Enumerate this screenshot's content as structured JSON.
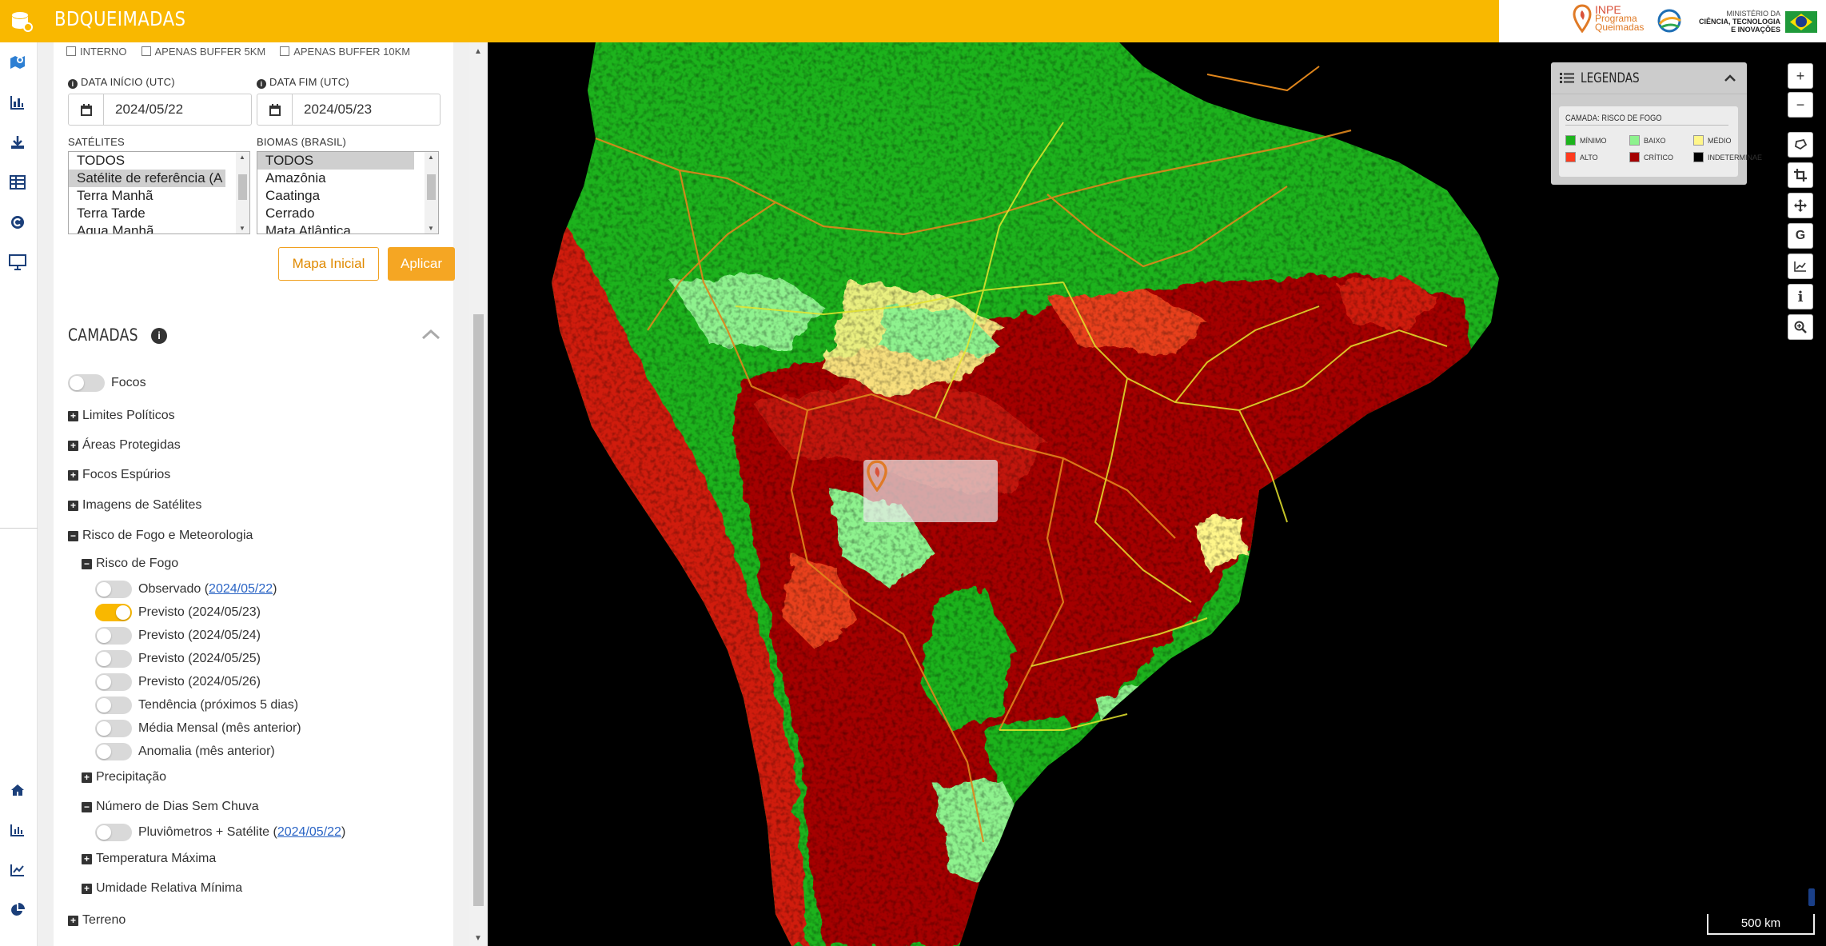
{
  "app": {
    "title": "BDQUEIMADAS",
    "brand_inpe_line1": "INPE",
    "brand_inpe_line2": "Programa",
    "brand_inpe_line3": "Queimadas",
    "brand_mcti_line1": "MINISTÉRIO DA",
    "brand_mcti_line2": "CIÊNCIA, TECNOLOGIA",
    "brand_mcti_line3": "E INOVAÇÕES",
    "accent_color": "#f9b800"
  },
  "rail": {
    "icons": [
      "map-pin-icon",
      "bar-chart-icon",
      "download-icon",
      "table-icon",
      "copyright-icon",
      "monitor-icon",
      "home-icon",
      "chart-icon",
      "line-chart-icon",
      "pie-chart-icon"
    ]
  },
  "filters": {
    "checkbox_labels": [
      "INTERNO",
      "APENAS BUFFER 5KM",
      "APENAS BUFFER 10KM"
    ],
    "date_start_label": "DATA INÍCIO (UTC)",
    "date_start_value": "2024/05/22",
    "date_end_label": "DATA FIM (UTC)",
    "date_end_value": "2024/05/23",
    "satellites_label": "SATÉLITES",
    "satellites_options": [
      "TODOS",
      "Satélite de referência (A",
      "Terra Manhã",
      "Terra Tarde",
      "Aqua Manhã"
    ],
    "satellites_selected": "Satélite de referência (A",
    "biomes_label": "BIOMAS (BRASIL)",
    "biomes_options": [
      "TODOS",
      "Amazônia",
      "Caatinga",
      "Cerrado",
      "Mata Atlântica"
    ],
    "biomes_selected": "TODOS",
    "btn_reset": "Mapa Inicial",
    "btn_apply": "Aplicar"
  },
  "layers": {
    "title": "CAMADAS",
    "focos": "Focos",
    "limites": "Limites Políticos",
    "areas": "Áreas Protegidas",
    "espurios": "Focos Espúrios",
    "imagens": "Imagens de Satélites",
    "risco_meteo": "Risco de Fogo e Meteorologia",
    "risco_fogo": "Risco de Fogo",
    "observado_prefix": "Observado (",
    "observado_link": "2024/05/22",
    "observado_suffix": ")",
    "previsto_1": "Previsto (2024/05/23)",
    "previsto_2": "Previsto (2024/05/24)",
    "previsto_3": "Previsto (2024/05/25)",
    "previsto_4": "Previsto (2024/05/26)",
    "tendencia": "Tendência (próximos 5 dias)",
    "media": "Média Mensal (mês anterior)",
    "anomalia": "Anomalia (mês anterior)",
    "precipitacao": "Precipitação",
    "dias_sem_chuva": "Número de Dias Sem Chuva",
    "pluv_prefix": "Pluviômetros + Satélite (",
    "pluv_link": "2024/05/22",
    "pluv_suffix": ")",
    "temp_max": "Temperatura Máxima",
    "umidade": "Umidade Relativa Mínima",
    "terreno": "Terreno",
    "active_layer": "Previsto (2024/05/23)"
  },
  "legend": {
    "title": "LEGENDAS",
    "layer": "CAMADA: RISCO DE FOGO",
    "items": [
      {
        "label": "MÍNIMO",
        "color": "#1db31d"
      },
      {
        "label": "BAIXO",
        "color": "#8ef28e"
      },
      {
        "label": "MÉDIO",
        "color": "#fff68a"
      },
      {
        "label": "ALTO",
        "color": "#ff3b1f"
      },
      {
        "label": "CRÍTICO",
        "color": "#a50000"
      },
      {
        "label": "INDETERMINAE",
        "color": "#000000"
      }
    ]
  },
  "map": {
    "scale_label": "500 km",
    "controls": [
      "zoom-in-icon",
      "zoom-out-icon",
      "lasso-icon",
      "crop-icon",
      "pan-icon",
      "google-icon",
      "graph-icon",
      "info-icon",
      "zoom-box-icon"
    ]
  }
}
